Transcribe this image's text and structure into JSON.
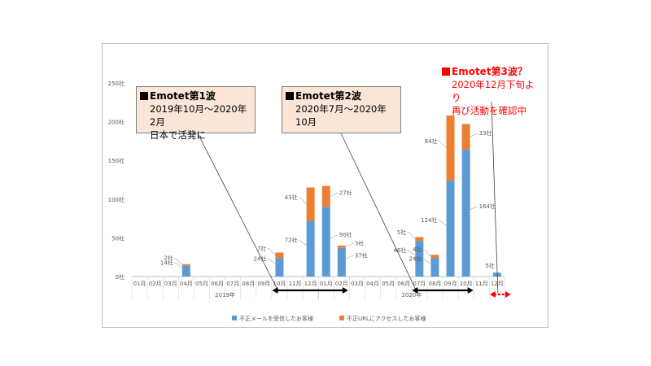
{
  "chart_data": {
    "type": "bar",
    "stacked": true,
    "ylim": [
      0,
      250
    ],
    "yticks": [
      "0社",
      "50社",
      "100社",
      "150社",
      "200社",
      "250社"
    ],
    "categories": [
      "01月",
      "02月",
      "03月",
      "04月",
      "05月",
      "06月",
      "07月",
      "08月",
      "09月",
      "10月",
      "11月",
      "12月",
      "01月",
      "02月",
      "03月",
      "04月",
      "05月",
      "06月",
      "07月",
      "08月",
      "09月",
      "10月",
      "11月",
      "12月"
    ],
    "year_labels": [
      "2019年",
      "2020年"
    ],
    "series": [
      {
        "name": "不正メールを受信したお客様",
        "color": "#5b9bd5",
        "values": [
          0,
          0,
          0,
          14,
          0,
          0,
          0,
          0,
          0,
          24,
          0,
          72,
          90,
          37,
          0,
          0,
          0,
          0,
          46,
          24,
          124,
          164,
          0,
          5
        ]
      },
      {
        "name": "不正URLにアクセスしたお客様",
        "color": "#ed7d31",
        "values": [
          0,
          0,
          0,
          2,
          0,
          0,
          0,
          0,
          0,
          7,
          0,
          43,
          27,
          3,
          0,
          0,
          0,
          0,
          5,
          4,
          84,
          33,
          0,
          0
        ]
      }
    ],
    "value_labels": {
      "3": {
        "top": "2社",
        "bottom": "14社"
      },
      "9": {
        "top": "7社",
        "bottom": "24社"
      },
      "11": {
        "top": "43社",
        "bottom": "72社"
      },
      "12": {
        "top": "27社",
        "bottom": "90社"
      },
      "13": {
        "top": "3社",
        "bottom": "37社"
      },
      "18": {
        "top": "5社",
        "bottom": "46社"
      },
      "19": {
        "top": "4社",
        "bottom": "24社"
      },
      "20": {
        "top": "84社",
        "bottom": "124社"
      },
      "21": {
        "top": "33社",
        "bottom": "164社"
      },
      "23": {
        "single": "5社"
      }
    },
    "legend_position": "bottom",
    "grid": false
  },
  "callouts": {
    "wave1": {
      "title": "Emotet第1波",
      "line1": "2019年10月～2020年2月",
      "line2": "日本で活発に"
    },
    "wave2": {
      "title": "Emotet第2波",
      "line1": "2020年7月～2020年10月"
    },
    "wave3": {
      "title": "Emotet第3波？",
      "line1": "2020年12月下旬より",
      "line2": "再び活動を確認中",
      "color": "#ff0000"
    }
  }
}
